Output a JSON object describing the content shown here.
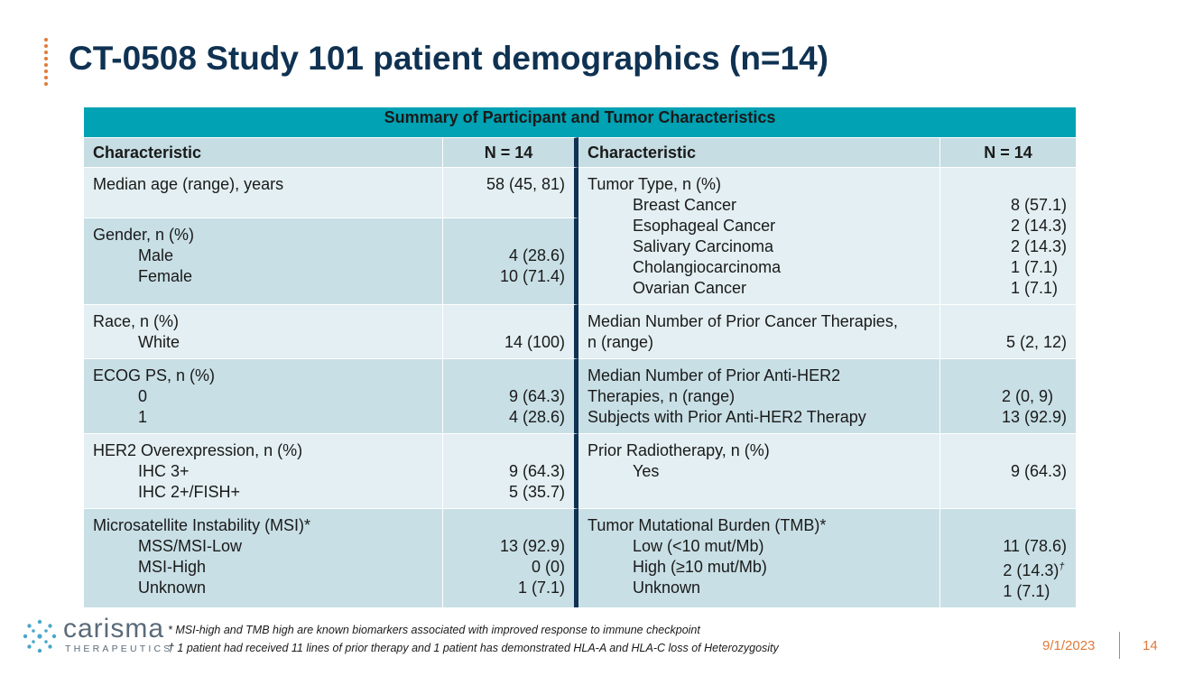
{
  "title": "CT-0508 Study 101 patient demographics (n=14)",
  "table": {
    "caption": "Summary of Participant and Tumor Characteristics",
    "headers": {
      "left_char": "Characteristic",
      "left_n": "N = 14",
      "right_char": "Characteristic",
      "right_n": "N = 14"
    },
    "rows": [
      {
        "left_label": "Median age (range), years",
        "left_value": "58 (45, 81)",
        "right_label": "Tumor Type, n (%)",
        "right_items": [
          {
            "label": "Breast Cancer",
            "value": "8 (57.1)"
          },
          {
            "label": "Esophageal Cancer",
            "value": "2 (14.3)"
          },
          {
            "label": "Salivary Carcinoma",
            "value": "2 (14.3)"
          },
          {
            "label": "Cholangiocarcinoma",
            "value": "1 (7.1)"
          },
          {
            "label": "Ovarian Cancer",
            "value": "1 (7.1)"
          }
        ]
      },
      {
        "left_label": "Gender, n (%)",
        "left_items": [
          {
            "label": "Male",
            "value": "4 (28.6)"
          },
          {
            "label": "Female",
            "value": "10 (71.4)"
          }
        ]
      },
      {
        "left_label": "Race, n (%)",
        "left_items": [
          {
            "label": "White",
            "value": "14 (100)"
          }
        ],
        "right_line1": "Median Number of Prior Cancer Therapies,",
        "right_line2": "n (range)",
        "right_value": "5 (2, 12)"
      },
      {
        "left_label": "ECOG PS, n (%)",
        "left_items": [
          {
            "label": "0",
            "value": "9 (64.3)"
          },
          {
            "label": "1",
            "value": "4 (28.6)"
          }
        ],
        "right_line1": "Median Number of Prior Anti-HER2",
        "right_line2": "Therapies, n (range)",
        "right_value2": "2 (0, 9)",
        "right_line3": "Subjects with Prior Anti-HER2 Therapy",
        "right_value3": "13 (92.9)"
      },
      {
        "left_label": "HER2 Overexpression, n (%)",
        "left_items": [
          {
            "label": "IHC 3+",
            "value": "9 (64.3)"
          },
          {
            "label": "IHC 2+/FISH+",
            "value": "5 (35.7)"
          }
        ],
        "right_label": "Prior Radiotherapy, n (%)",
        "right_items": [
          {
            "label": "Yes",
            "value": "9 (64.3)"
          }
        ]
      },
      {
        "left_label": "Microsatellite Instability (MSI)*",
        "left_items": [
          {
            "label": "MSS/MSI-Low",
            "value": "13 (92.9)"
          },
          {
            "label": "MSI-High",
            "value": "0 (0)"
          },
          {
            "label": "Unknown",
            "value": "1 (7.1)"
          }
        ],
        "right_label": "Tumor Mutational Burden (TMB)*",
        "right_items": [
          {
            "label": "Low (<10 mut/Mb)",
            "value": "11 (78.6)"
          },
          {
            "label": "High (≥10 mut/Mb)",
            "value": "2 (14.3)",
            "mark": "†"
          },
          {
            "label": "Unknown",
            "value": "1 (7.1)"
          }
        ]
      }
    ]
  },
  "footnotes": {
    "note1": "* MSI-high and TMB high are known biomarkers associated with improved response to immune checkpoint",
    "note2": "† 1 patient had received 11 lines of prior therapy and 1 patient has demonstrated HLA-A and HLA-C loss of Heterozygosity"
  },
  "logo": {
    "word": "carisma",
    "sub": "THERAPEUTICS"
  },
  "date": "9/1/2023",
  "page_number": "14",
  "colors": {
    "title": "#0f3252",
    "accent": "#e07a3a",
    "caption_bg": "#00a2b4",
    "header_bg": "#c5dde3"
  }
}
